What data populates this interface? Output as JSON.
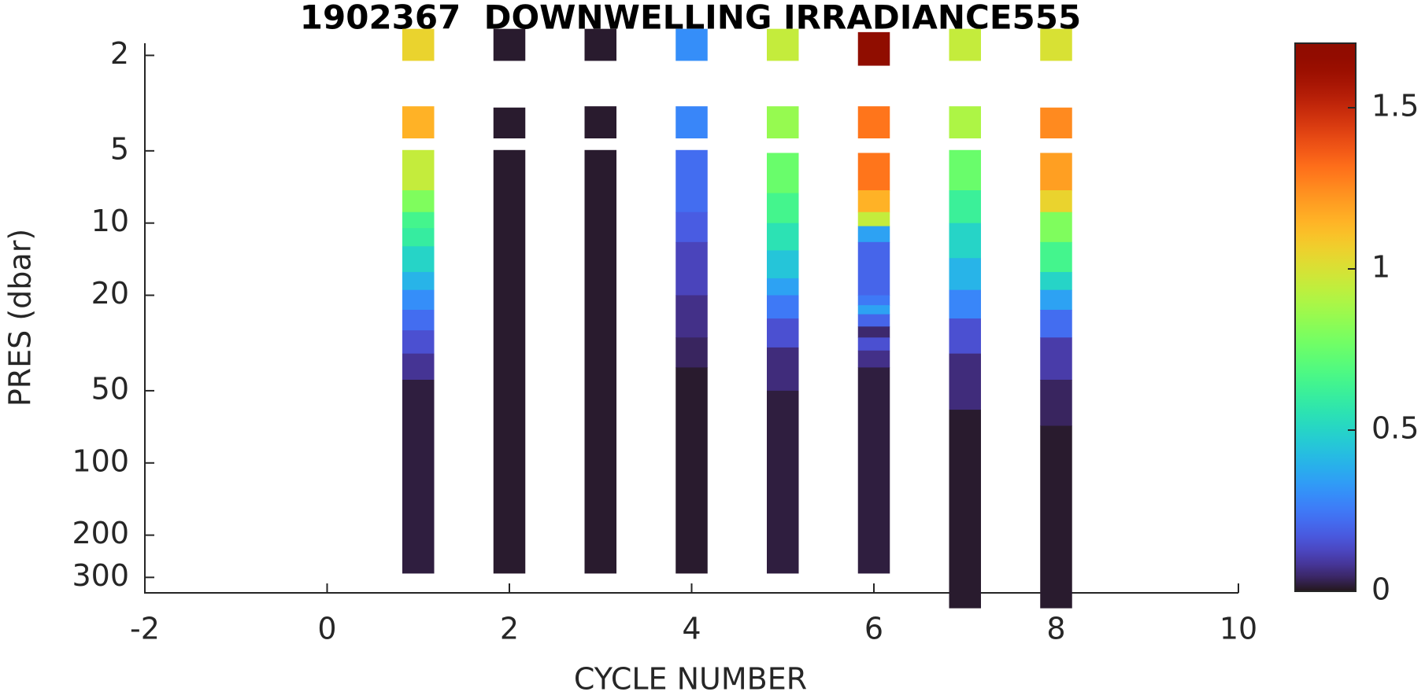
{
  "chart_data": {
    "type": "profile-heatmap",
    "title": "1902367  DOWNWELLING IRRADIANCE555",
    "xlabel": "CYCLE NUMBER",
    "ylabel": "PRES (dbar)",
    "xlim": [
      -2,
      10
    ],
    "xticks": [
      -2,
      0,
      2,
      4,
      6,
      8,
      10
    ],
    "ylim": [
      1.78,
      348
    ],
    "yticks": [
      2,
      5,
      10,
      20,
      50,
      100,
      200,
      300
    ],
    "yscale": "log",
    "yreverse": true,
    "colormap": "turbo",
    "clim": [
      0,
      1.7
    ],
    "cticks": [
      0,
      0.5,
      1,
      1.5
    ],
    "profiles": [
      {
        "cycle": 1,
        "top": [
          1.55,
          3.26,
          4.96,
          7.3,
          9,
          10.5,
          12.5,
          16,
          19,
          23,
          28,
          35,
          45
        ],
        "bottom": [
          2.1,
          4.42,
          7.3,
          9,
          10.5,
          12.5,
          16,
          19,
          23,
          28,
          35,
          45,
          288
        ],
        "values": [
          1.05,
          1.15,
          0.95,
          0.8,
          0.65,
          0.6,
          0.5,
          0.4,
          0.3,
          0.22,
          0.15,
          0.08,
          0.02
        ]
      },
      {
        "cycle": 2,
        "top": [
          1.55,
          3.3,
          4.96
        ],
        "bottom": [
          2.1,
          4.42,
          288
        ],
        "values": [
          0.01,
          0.01,
          0.01
        ]
      },
      {
        "cycle": 3,
        "top": [
          1.55,
          3.26,
          4.96
        ],
        "bottom": [
          2.1,
          4.42,
          288
        ],
        "values": [
          0.01,
          0.01,
          0.01
        ]
      },
      {
        "cycle": 4,
        "top": [
          1.55,
          3.26,
          4.96,
          9,
          12,
          20,
          30,
          40
        ],
        "bottom": [
          2.1,
          4.42,
          9,
          12,
          20,
          30,
          40,
          288
        ],
        "values": [
          0.3,
          0.28,
          0.22,
          0.18,
          0.12,
          0.07,
          0.04,
          0.01
        ]
      },
      {
        "cycle": 5,
        "top": [
          1.55,
          3.26,
          5.1,
          7.5,
          10,
          13,
          17,
          20,
          25,
          33,
          50
        ],
        "bottom": [
          2.1,
          4.42,
          7.5,
          10,
          13,
          17,
          20,
          25,
          33,
          50,
          288
        ],
        "values": [
          0.95,
          0.85,
          0.75,
          0.65,
          0.55,
          0.45,
          0.35,
          0.25,
          0.15,
          0.06,
          0.02
        ]
      },
      {
        "cycle": 6,
        "top": [
          1.6,
          3.26,
          5.1,
          7.3,
          9,
          10.3,
          12,
          20,
          22,
          24,
          27,
          30,
          34,
          40
        ],
        "bottom": [
          2.2,
          4.42,
          7.3,
          9,
          10.3,
          12,
          20,
          22,
          24,
          27,
          30,
          34,
          40,
          288
        ],
        "values": [
          1.7,
          1.3,
          1.3,
          1.15,
          0.95,
          0.35,
          0.2,
          0.25,
          0.35,
          0.2,
          0.05,
          0.15,
          0.07,
          0.02
        ]
      },
      {
        "cycle": 7,
        "top": [
          1.55,
          3.26,
          4.96,
          7.3,
          10,
          14,
          19,
          25,
          35,
          60
        ],
        "bottom": [
          2.1,
          4.42,
          7.3,
          10,
          14,
          19,
          25,
          35,
          60,
          402
        ],
        "values": [
          0.95,
          0.9,
          0.75,
          0.62,
          0.5,
          0.4,
          0.28,
          0.15,
          0.06,
          0.01
        ]
      },
      {
        "cycle": 8,
        "top": [
          1.55,
          3.3,
          5.1,
          7.3,
          9,
          12,
          16,
          19,
          23,
          30,
          45,
          70
        ],
        "bottom": [
          2.1,
          4.42,
          7.3,
          9,
          12,
          16,
          19,
          23,
          30,
          45,
          70,
          402
        ],
        "values": [
          1.0,
          1.25,
          1.2,
          1.05,
          0.8,
          0.65,
          0.5,
          0.35,
          0.22,
          0.1,
          0.04,
          0.01
        ]
      }
    ]
  }
}
